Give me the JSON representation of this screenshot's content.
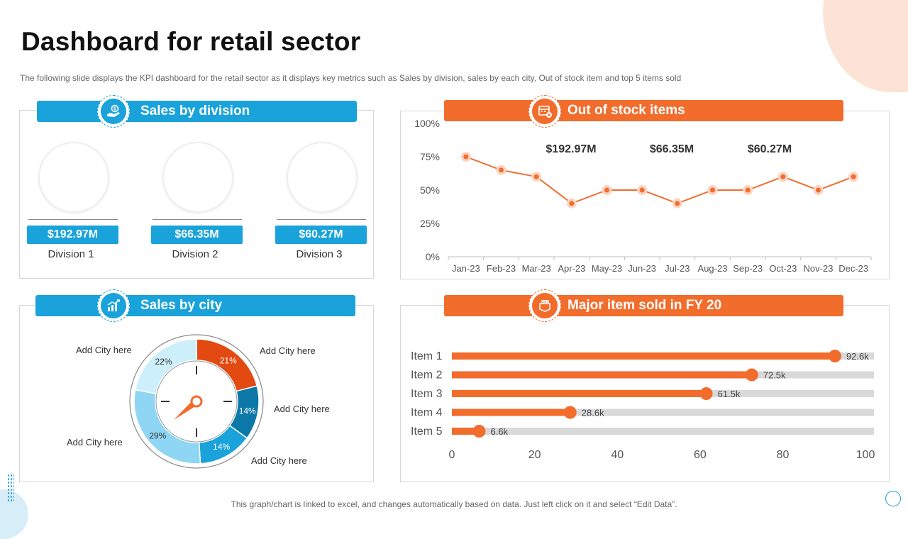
{
  "title": "Dashboard for retail sector",
  "subtitle": "The following  slide displays the KPI dashboard  for the retail sector as it displays key metrics such as Sales by division,  sales by each city, Out of stock item and top 5 items sold",
  "footer": "This graph/chart is linked to excel,  and changes automatically based on data. Just left click on it and select “Edit Data”.",
  "colors": {
    "blue": "#1aa3db",
    "orange": "#f26c2c",
    "light_orange": "#f7b89a",
    "grey_track": "#d9d9d9"
  },
  "panels": {
    "sales_division": {
      "header": "Sales by division",
      "icon": "hand-money-icon",
      "divisions": [
        {
          "label": "Division 1",
          "value": "$192.97M"
        },
        {
          "label": "Division 2",
          "value": "$66.35M"
        },
        {
          "label": "Division 3",
          "value": "$60.27M"
        }
      ]
    },
    "out_of_stock": {
      "header": "Out of stock items",
      "icon": "out-of-stock-box-icon"
    },
    "sales_city": {
      "header": "Sales by city",
      "icon": "bar-growth-icon"
    },
    "major_item": {
      "header": "Major item sold in FY 20",
      "icon": "sold-box-icon"
    }
  },
  "chart_data": [
    {
      "id": "out_of_stock",
      "type": "line",
      "title": "Out of stock items",
      "categories": [
        "Jan-23",
        "Feb-23",
        "Mar-23",
        "Apr-23",
        "May-23",
        "Jun-23",
        "Jul-23",
        "Aug-23",
        "Sep-23",
        "Oct-23",
        "Nov-23",
        "Dec-23"
      ],
      "values": [
        0.75,
        0.65,
        0.6,
        0.4,
        0.5,
        0.5,
        0.4,
        0.5,
        0.5,
        0.6,
        0.5,
        0.6
      ],
      "ylim": [
        0,
        1
      ],
      "yticks": [
        "0%",
        "25%",
        "50%",
        "75%",
        "100%"
      ],
      "annotations": [
        "$192.97M",
        "$66.35M",
        "$60.27M"
      ],
      "grid": false
    },
    {
      "id": "sales_city",
      "type": "pie",
      "title": "Sales by city",
      "slices": [
        {
          "label": "Add City here",
          "value": 21,
          "display": "21%",
          "color": "#e24a12"
        },
        {
          "label": "Add City here",
          "value": 14,
          "display": "14%",
          "color": "#0b78a8"
        },
        {
          "label": "Add City here",
          "value": 14,
          "display": "14%",
          "color": "#1aa3db"
        },
        {
          "label": "Add City here",
          "value": 29,
          "display": "29%",
          "color": "#8fd6f5"
        },
        {
          "label": "Add City here",
          "value": 22,
          "display": "22%",
          "color": "#cdeffc"
        }
      ]
    },
    {
      "id": "major_item",
      "type": "bar",
      "orientation": "horizontal",
      "title": "Major item sold in FY 20",
      "categories": [
        "Item 1",
        "Item 2",
        "Item 3",
        "Item 4",
        "Item 5"
      ],
      "values": [
        92.6,
        72.5,
        61.5,
        28.6,
        6.6
      ],
      "value_labels": [
        "92.6k",
        "72.5k",
        "61.5k",
        "28.6k",
        "6.6k"
      ],
      "xlim": [
        0,
        100
      ],
      "xticks": [
        "0",
        "20",
        "40",
        "60",
        "80",
        "100"
      ]
    }
  ]
}
